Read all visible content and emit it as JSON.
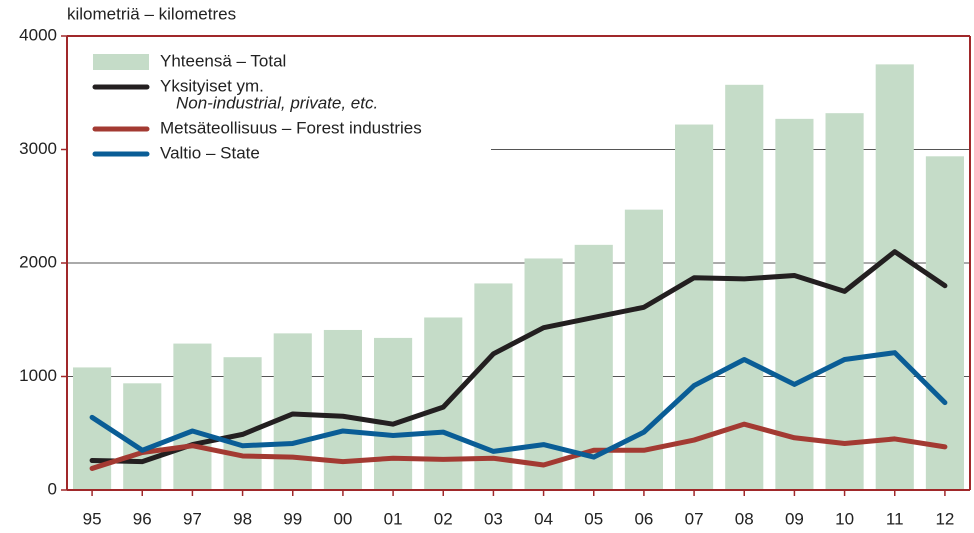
{
  "chart_data": {
    "type": "bar_line",
    "y_label": "kilometriä – kilometres",
    "categories": [
      "95",
      "96",
      "97",
      "98",
      "99",
      "00",
      "01",
      "02",
      "03",
      "04",
      "05",
      "06",
      "07",
      "08",
      "09",
      "10",
      "11",
      "12"
    ],
    "series": [
      {
        "name": "Yhteensä – Total",
        "type": "bar",
        "color": "#c5dcc8",
        "values": [
          1080,
          940,
          1290,
          1170,
          1380,
          1410,
          1340,
          1520,
          1820,
          2040,
          2160,
          2470,
          3220,
          3570,
          3270,
          3320,
          3750,
          2940
        ]
      },
      {
        "name": [
          "Yksityiset ym.",
          "Non-industrial, private, etc."
        ],
        "type": "line",
        "color": "#231f20",
        "values": [
          260,
          250,
          400,
          490,
          670,
          650,
          580,
          730,
          1200,
          1430,
          1520,
          1610,
          1870,
          1860,
          1890,
          1750,
          2100,
          1800
        ]
      },
      {
        "name": "Metsäteollisuus – Forest industries",
        "type": "line",
        "color": "#a33a32",
        "values": [
          190,
          330,
          390,
          300,
          290,
          250,
          280,
          270,
          280,
          220,
          350,
          350,
          440,
          580,
          460,
          410,
          450,
          380
        ]
      },
      {
        "name": "Valtio – State",
        "type": "line",
        "color": "#0a5d96",
        "values": [
          640,
          350,
          520,
          390,
          410,
          520,
          480,
          510,
          340,
          400,
          290,
          510,
          920,
          1150,
          930,
          1150,
          1210,
          770
        ]
      }
    ],
    "ylim": [
      0,
      4000
    ],
    "yticks": [
      0,
      1000,
      2000,
      3000,
      4000
    ],
    "grid": true
  }
}
